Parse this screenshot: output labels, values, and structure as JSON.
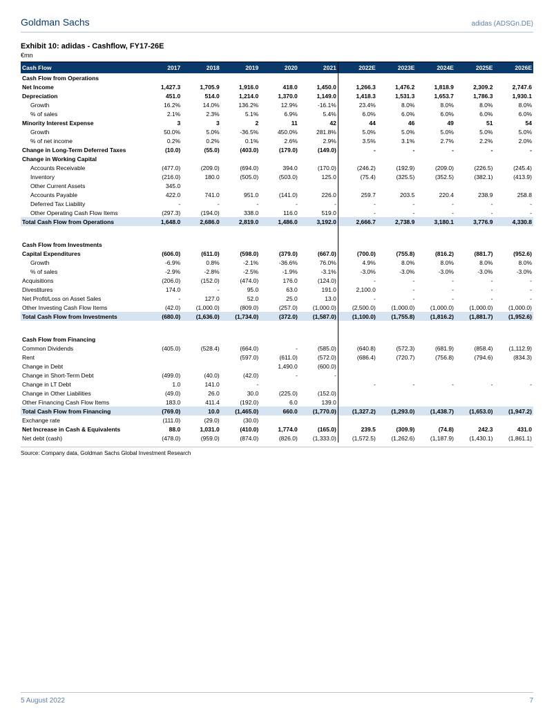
{
  "header": {
    "company": "Goldman Sachs",
    "ticker": "adidas (ADSGn.DE)"
  },
  "exhibit": {
    "title": "Exhibit 10: adidas - Cashflow, FY17-26E",
    "subtitle": "€mn"
  },
  "table": {
    "header_label": "Cash Flow",
    "years": [
      "2017",
      "2018",
      "2019",
      "2020",
      "2021",
      "2022E",
      "2023E",
      "2024E",
      "2025E",
      "2026E"
    ],
    "sep_index": 5,
    "rows": [
      {
        "t": "section",
        "label": "Cash Flow from Operations",
        "vals": [
          "",
          "",
          "",
          "",
          "",
          "",
          "",
          "",
          "",
          ""
        ]
      },
      {
        "t": "bold",
        "label": "Net Income",
        "vals": [
          "1,427.3",
          "1,705.9",
          "1,916.0",
          "418.0",
          "1,450.0",
          "1,266.3",
          "1,476.2",
          "1,818.9",
          "2,309.2",
          "2,747.6"
        ]
      },
      {
        "t": "bold",
        "label": "Depreciation",
        "vals": [
          "451.0",
          "514.0",
          "1,214.0",
          "1,370.0",
          "1,149.0",
          "1,418.3",
          "1,531.3",
          "1,653.7",
          "1,786.3",
          "1,930.1"
        ]
      },
      {
        "t": "indent",
        "label": "Growth",
        "vals": [
          "16.2%",
          "14.0%",
          "136.2%",
          "12.9%",
          "-16.1%",
          "23.4%",
          "8.0%",
          "8.0%",
          "8.0%",
          "8.0%"
        ]
      },
      {
        "t": "indent",
        "label": "% of sales",
        "vals": [
          "2.1%",
          "2.3%",
          "5.1%",
          "6.9%",
          "5.4%",
          "6.0%",
          "6.0%",
          "6.0%",
          "6.0%",
          "6.0%"
        ]
      },
      {
        "t": "bold",
        "label": "Minority Interest Expense",
        "vals": [
          "3",
          "3",
          "2",
          "11",
          "42",
          "44",
          "46",
          "49",
          "51",
          "54"
        ]
      },
      {
        "t": "indent",
        "label": "Growth",
        "vals": [
          "50.0%",
          "5.0%",
          "-36.5%",
          "450.0%",
          "281.8%",
          "5.0%",
          "5.0%",
          "5.0%",
          "5.0%",
          "5.0%"
        ]
      },
      {
        "t": "indent",
        "label": "% of net income",
        "vals": [
          "0.2%",
          "0.2%",
          "0.1%",
          "2.6%",
          "2.9%",
          "3.5%",
          "3.1%",
          "2.7%",
          "2.2%",
          "2.0%"
        ]
      },
      {
        "t": "bold",
        "label": "Change in Long-Term Deferred Taxes",
        "vals": [
          "(10.0)",
          "(55.0)",
          "(403.0)",
          "(179.0)",
          "(149.0)",
          "-",
          "-",
          "-",
          "-",
          "-"
        ]
      },
      {
        "t": "bold",
        "label": "Change in Working Capital",
        "vals": [
          "",
          "",
          "",
          "",
          "",
          "",
          "",
          "",
          "",
          ""
        ]
      },
      {
        "t": "indent",
        "label": "Accounts Receivable",
        "vals": [
          "(477.0)",
          "(209.0)",
          "(694.0)",
          "394.0",
          "(170.0)",
          "(246.2)",
          "(192.9)",
          "(209.0)",
          "(226.5)",
          "(245.4)"
        ]
      },
      {
        "t": "indent",
        "label": "Inventory",
        "vals": [
          "(216.0)",
          "180.0",
          "(505.0)",
          "(503.0)",
          "125.0",
          "(75.4)",
          "(325.5)",
          "(352.5)",
          "(382.1)",
          "(413.9)"
        ]
      },
      {
        "t": "indent",
        "label": "Other Current Assets",
        "vals": [
          "345.0",
          "",
          "",
          "",
          "",
          "",
          "",
          "",
          "",
          ""
        ]
      },
      {
        "t": "indent",
        "label": "Accounts Payable",
        "vals": [
          "422.0",
          "741.0",
          "951.0",
          "(141.0)",
          "226.0",
          "259.7",
          "203.5",
          "220.4",
          "238.9",
          "258.8"
        ]
      },
      {
        "t": "indent",
        "label": "Deferred Tax Liability",
        "vals": [
          "-",
          "-",
          "-",
          "-",
          "-",
          "-",
          "-",
          "-",
          "-",
          "-"
        ]
      },
      {
        "t": "indent",
        "label": "Other Operating Cash Flow Items",
        "vals": [
          "(297.3)",
          "(194.0)",
          "338.0",
          "116.0",
          "519.0",
          "-",
          "-",
          "-",
          "-",
          "-"
        ]
      },
      {
        "t": "total",
        "label": "Total Cash Flow from Operations",
        "vals": [
          "1,648.0",
          "2,686.0",
          "2,819.0",
          "1,486.0",
          "3,192.0",
          "2,666.7",
          "2,738.9",
          "3,180.1",
          "3,776.9",
          "4,330.8"
        ]
      },
      {
        "t": "empty"
      },
      {
        "t": "bold",
        "label": "Cash Flow from Investments",
        "vals": [
          "",
          "",
          "",
          "",
          "",
          "",
          "",
          "",
          "",
          ""
        ]
      },
      {
        "t": "bold",
        "label": "Capital Expenditures",
        "vals": [
          "(606.0)",
          "(611.0)",
          "(598.0)",
          "(379.0)",
          "(667.0)",
          "(700.0)",
          "(755.8)",
          "(816.2)",
          "(881.7)",
          "(952.6)"
        ]
      },
      {
        "t": "indent",
        "label": "Growth",
        "vals": [
          "-6.9%",
          "0.8%",
          "-2.1%",
          "-36.6%",
          "76.0%",
          "4.9%",
          "8.0%",
          "8.0%",
          "8.0%",
          "8.0%"
        ]
      },
      {
        "t": "indent",
        "label": "% of sales",
        "vals": [
          "-2.9%",
          "-2.8%",
          "-2.5%",
          "-1.9%",
          "-3.1%",
          "-3.0%",
          "-3.0%",
          "-3.0%",
          "-3.0%",
          "-3.0%"
        ]
      },
      {
        "t": "row",
        "label": "Acquisitions",
        "vals": [
          "(206.0)",
          "(152.0)",
          "(474.0)",
          "176.0",
          "(124.0)",
          "-",
          "-",
          "-",
          "-",
          "-"
        ]
      },
      {
        "t": "row",
        "label": "Divestitures",
        "vals": [
          "174.0",
          "-",
          "95.0",
          "63.0",
          "191.0",
          "2,100.0",
          "-",
          "-",
          "-",
          "-"
        ]
      },
      {
        "t": "row",
        "label": "Net Profit/Loss on Asset Sales",
        "vals": [
          "-",
          "127.0",
          "52.0",
          "25.0",
          "13.0",
          "-",
          "-",
          "-",
          "-",
          "-"
        ]
      },
      {
        "t": "row",
        "label": "Other Investing Cash Flow Items",
        "vals": [
          "(42.0)",
          "(1,000.0)",
          "(809.0)",
          "(257.0)",
          "(1,000.0)",
          "(2,500.0)",
          "(1,000.0)",
          "(1,000.0)",
          "(1,000.0)",
          "(1,000.0)"
        ]
      },
      {
        "t": "total",
        "label": "Total Cash Flow from Investments",
        "vals": [
          "(680.0)",
          "(1,636.0)",
          "(1,734.0)",
          "(372.0)",
          "(1,587.0)",
          "(1,100.0)",
          "(1,755.8)",
          "(1,816.2)",
          "(1,881.7)",
          "(1,952.6)"
        ]
      },
      {
        "t": "empty"
      },
      {
        "t": "bold",
        "label": "Cash Flow from Financing",
        "vals": [
          "",
          "",
          "",
          "",
          "",
          "",
          "",
          "",
          "",
          ""
        ]
      },
      {
        "t": "row",
        "label": "Common Dividends",
        "vals": [
          "(405.0)",
          "(528.4)",
          "(664.0)",
          "-",
          "(585.0)",
          "(640.8)",
          "(572.3)",
          "(681.9)",
          "(858.4)",
          "(1,112.9)"
        ]
      },
      {
        "t": "row",
        "label": "Rent",
        "vals": [
          "",
          "",
          "(597.0)",
          "(611.0)",
          "(572.0)",
          "(686.4)",
          "(720.7)",
          "(756.8)",
          "(794.6)",
          "(834.3)"
        ]
      },
      {
        "t": "row",
        "label": "Change in Debt",
        "vals": [
          "",
          "",
          "",
          "1,490.0",
          "(600.0)",
          "",
          "",
          "",
          "",
          ""
        ]
      },
      {
        "t": "row",
        "label": "Change in Short-Term Debt",
        "vals": [
          "(499.0)",
          "(40.0)",
          "(42.0)",
          "-",
          "-",
          "",
          "",
          "",
          "",
          ""
        ]
      },
      {
        "t": "row",
        "label": "Change in LT Debt",
        "vals": [
          "1.0",
          "141.0",
          "-",
          "",
          "",
          "-",
          "-",
          "-",
          "-",
          "-"
        ]
      },
      {
        "t": "row",
        "label": "Change in Other Liabilities",
        "vals": [
          "(49.0)",
          "26.0",
          "30.0",
          "(225.0)",
          "(152.0)",
          "",
          "",
          "",
          "",
          ""
        ]
      },
      {
        "t": "row",
        "label": "Other Financing Cash Flow Items",
        "vals": [
          "183.0",
          "411.4",
          "(192.0)",
          "6.0",
          "139.0",
          "",
          "",
          "",
          "",
          ""
        ]
      },
      {
        "t": "total",
        "label": "Total Cash Flow from Financing",
        "vals": [
          "(769.0)",
          "10.0",
          "(1,465.0)",
          "660.0",
          "(1,770.0)",
          "(1,327.2)",
          "(1,293.0)",
          "(1,438.7)",
          "(1,653.0)",
          "(1,947.2)"
        ]
      },
      {
        "t": "row",
        "label": "Exchange rate",
        "vals": [
          "(111.0)",
          "(29.0)",
          "(30.0)",
          "",
          "",
          "",
          "",
          "",
          "",
          ""
        ]
      },
      {
        "t": "bold",
        "label": "Net Increase in Cash & Equivalents",
        "vals": [
          "88.0",
          "1,031.0",
          "(410.0)",
          "1,774.0",
          "(165.0)",
          "239.5",
          "(309.9)",
          "(74.8)",
          "242.3",
          "431.0"
        ]
      },
      {
        "t": "row",
        "label": "Net debt (cash)",
        "vals": [
          "(478.0)",
          "(959.0)",
          "(874.0)",
          "(826.0)",
          "(1,333.0)",
          "(1,572.5)",
          "(1,262.6)",
          "(1,187.9)",
          "(1,430.1)",
          "(1,861.1)"
        ]
      }
    ]
  },
  "source": "Source: Company data, Goldman Sachs Global Investment Research",
  "footer": {
    "date": "5 August 2022",
    "page": "7"
  },
  "colors": {
    "header_bg": "#0a3a6b",
    "total_bg": "#d6e3f0",
    "accent_text": "#5e7fa3",
    "rule": "#b8c4d0"
  }
}
